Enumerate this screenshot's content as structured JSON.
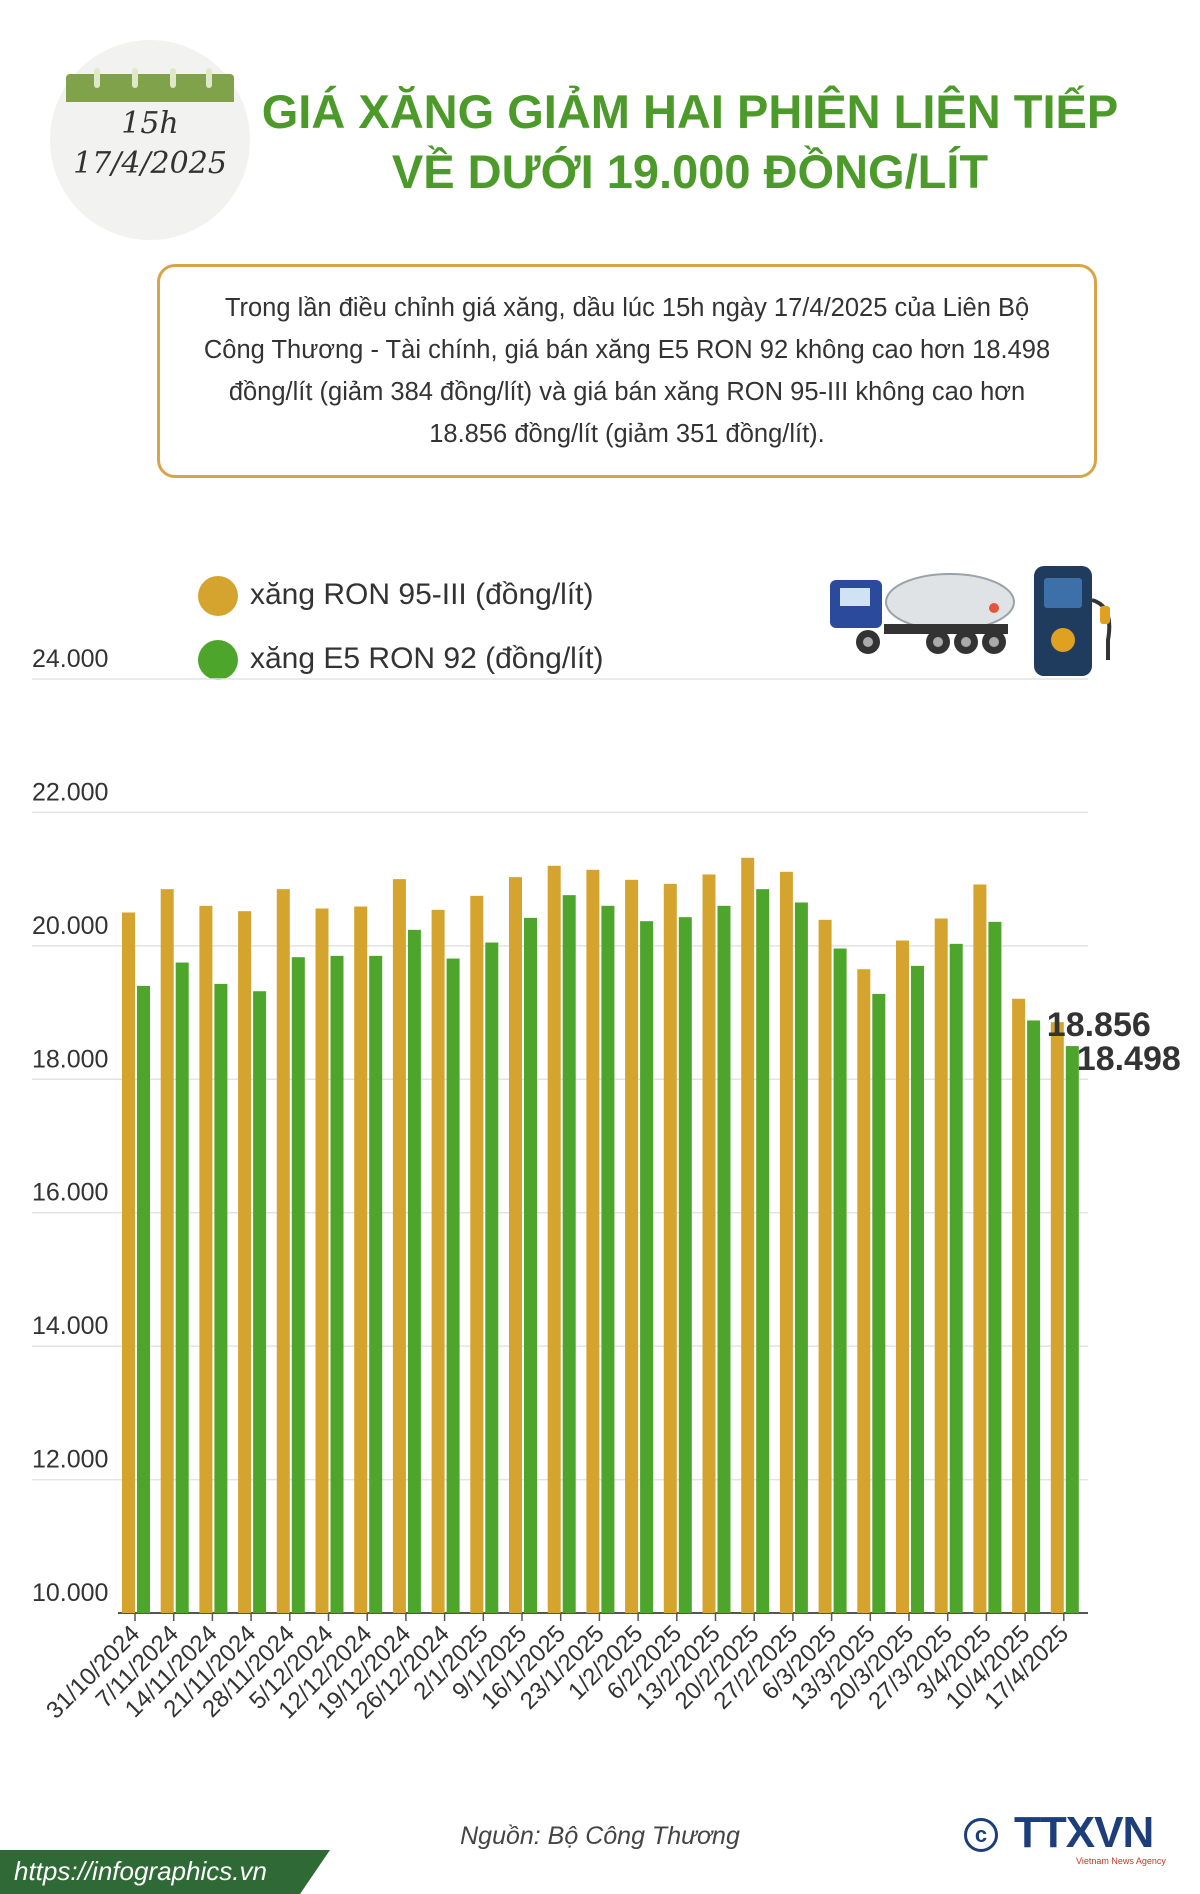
{
  "badge": {
    "time": "15h",
    "date": "17/4/2025"
  },
  "title": {
    "line1": "GIÁ XĂNG GIẢM HAI PHIÊN LIÊN TIẾP",
    "line2": "VỀ DƯỚI 19.000 ĐỒNG/LÍT"
  },
  "summary": "Trong lần điều chỉnh giá xăng, dầu lúc 15h ngày 17/4/2025 của Liên Bộ Công Thương - Tài chính, giá bán xăng E5 RON 92 không cao hơn 18.498 đồng/lít (giảm 384 đồng/lít) và giá bán xăng RON 95-III không cao hơn 18.856 đồng/lít (giảm 351 đồng/lít).",
  "legend": {
    "ron95": "xăng RON 95-III (đồng/lít)",
    "e5": "xăng E5 RON 92 (đồng/lít)"
  },
  "colors": {
    "ron95": "#d4a42e",
    "e5": "#4ea52b",
    "title": "#4c9a2a",
    "border": "#d9a34a"
  },
  "icons": [
    "fuel-truck-icon",
    "fuel-pump-icon"
  ],
  "chart_data": {
    "type": "bar",
    "categories": [
      "31/10/2024",
      "7/11/2024",
      "14/11/2024",
      "21/11/2024",
      "28/11/2024",
      "5/12/2024",
      "12/12/2024",
      "19/12/2024",
      "26/12/2024",
      "2/1/2025",
      "9/1/2025",
      "16/1/2025",
      "23/1/2025",
      "1/2/2025",
      "6/2/2025",
      "13/2/2025",
      "20/2/2025",
      "27/2/2025",
      "6/3/2025",
      "13/3/2025",
      "20/3/2025",
      "27/3/2025",
      "3/4/2025",
      "10/4/2025",
      "17/4/2025"
    ],
    "series": [
      {
        "name": "xăng RON 95-III (đồng/lít)",
        "values": [
          20500,
          20850,
          20600,
          20520,
          20850,
          20560,
          20590,
          21000,
          20540,
          20750,
          21030,
          21200,
          21140,
          20990,
          20930,
          21070,
          21320,
          21110,
          20390,
          19650,
          20080,
          20410,
          20920,
          19207,
          18856
        ]
      },
      {
        "name": "xăng E5 RON 92 (đồng/lít)",
        "values": [
          19400,
          19750,
          19430,
          19320,
          19830,
          19850,
          19850,
          20240,
          19810,
          20050,
          20420,
          20760,
          20600,
          20370,
          20430,
          20600,
          20850,
          20650,
          19960,
          19280,
          19700,
          20030,
          20360,
          18882,
          18498
        ]
      }
    ],
    "ylim": [
      10000,
      24000
    ],
    "yticks": [
      "10.000",
      "12.000",
      "14.000",
      "16.000",
      "18.000",
      "20.000",
      "22.000",
      "24.000"
    ],
    "annotations": [
      "18.856",
      "18.498"
    ],
    "grid": true,
    "legend": "top-left"
  },
  "source": "Nguồn: Bộ Công Thương",
  "footer": {
    "url": "https://infographics.vn",
    "logo": "TTXVN",
    "logo_sub": "Vietnam News Agency"
  }
}
